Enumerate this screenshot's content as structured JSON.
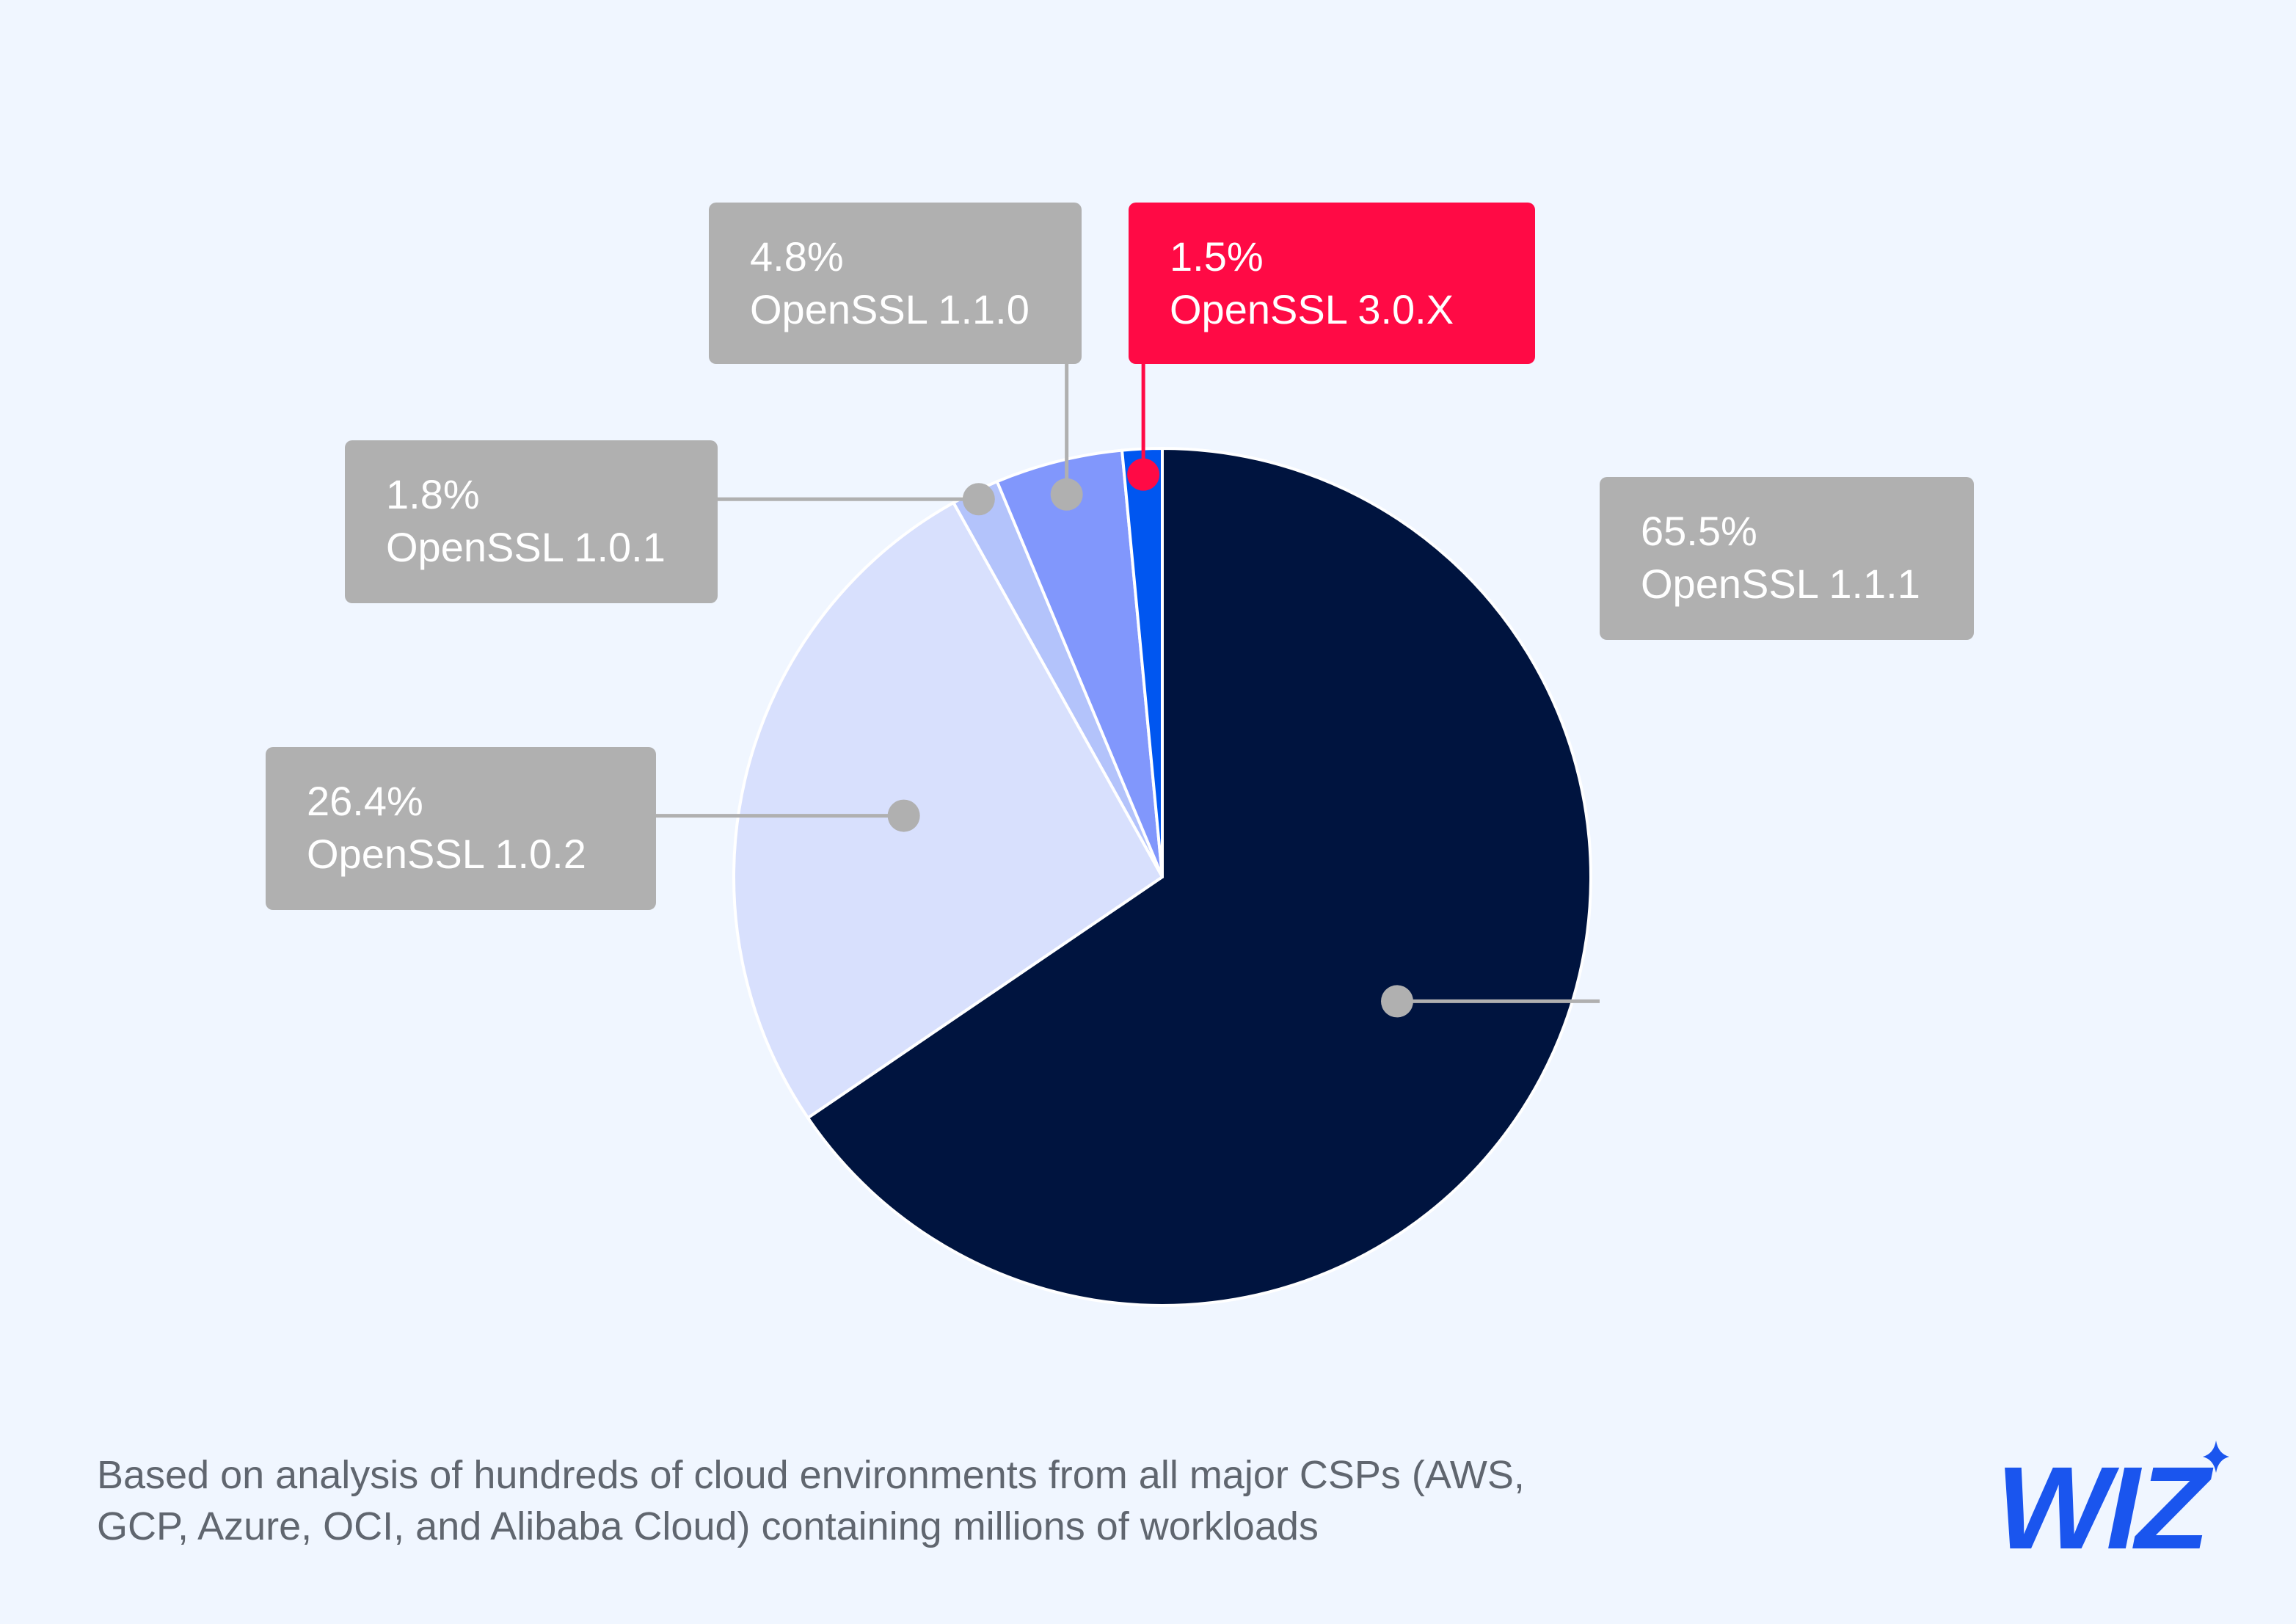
{
  "chart_data": {
    "type": "pie",
    "slices": [
      {
        "label": "OpenSSL 1.1.1",
        "value": 65.5,
        "value_text": "65.5%",
        "color": "#00143f",
        "label_color": "#b0b0b0"
      },
      {
        "label": "OpenSSL 1.0.2",
        "value": 26.4,
        "value_text": "26.4%",
        "color": "#d8e0fd",
        "label_color": "#b0b0b0"
      },
      {
        "label": "OpenSSL 1.0.1",
        "value": 1.8,
        "value_text": "1.8%",
        "color": "#b3c3fb",
        "label_color": "#b0b0b0"
      },
      {
        "label": "OpenSSL 1.1.0",
        "value": 4.8,
        "value_text": "4.8%",
        "color": "#8197fc",
        "label_color": "#b0b0b0"
      },
      {
        "label": "OpenSSL 3.0.X",
        "value": 1.5,
        "value_text": "1.5%",
        "color": "#0056f0",
        "label_color": "#ff0a45"
      }
    ]
  },
  "footnote": {
    "line1": "Based on analysis of hundreds of cloud environments from all major CSPs (AWS,",
    "line2": "GCP, Azure, OCI, and Alibaba Cloud) containing millions of workloads"
  },
  "logo": {
    "text": "WIZ",
    "color": "#1a55ee"
  }
}
